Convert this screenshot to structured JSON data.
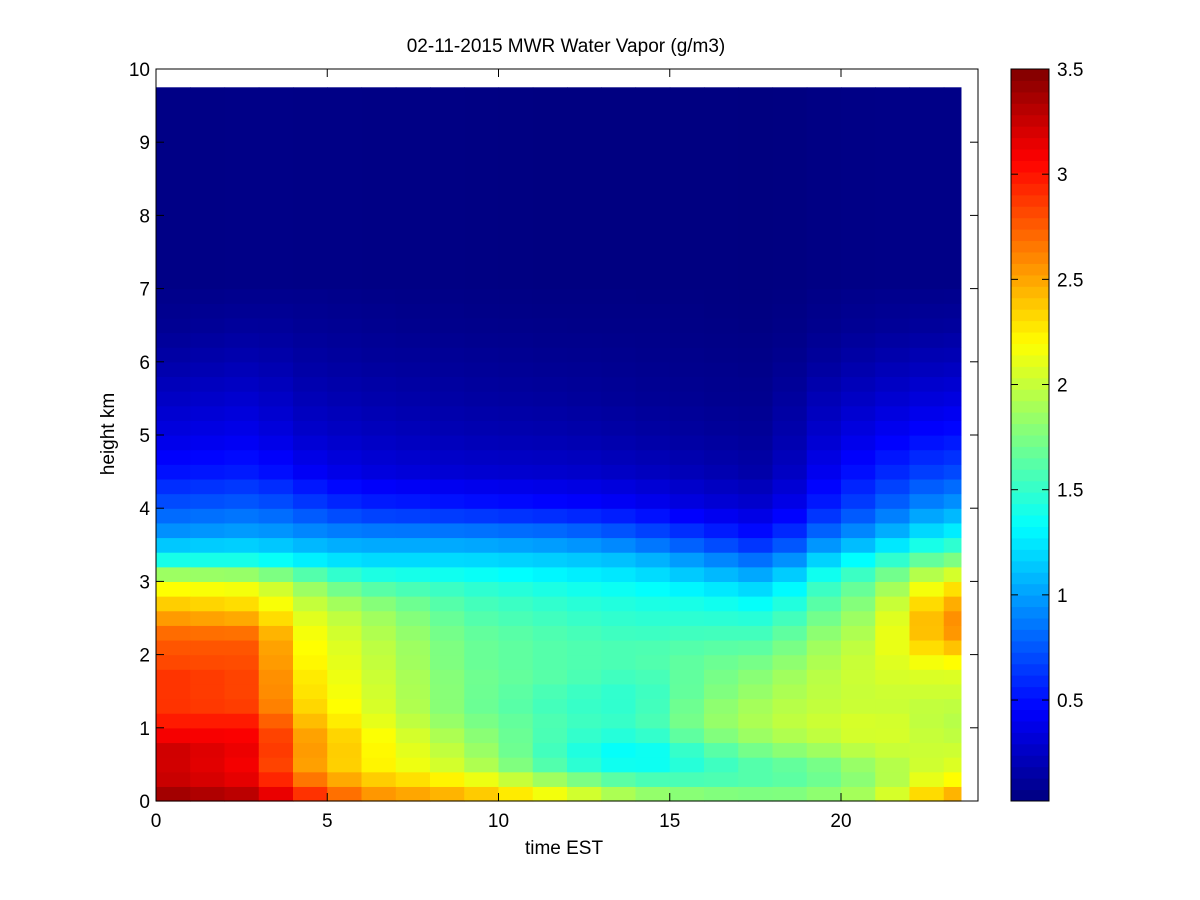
{
  "chart_data": {
    "type": "heatmap",
    "title": "02-11-2015 MWR Water Vapor (g/m3)",
    "xlabel": "time EST",
    "ylabel": "height km",
    "xlim": [
      0,
      24
    ],
    "ylim": [
      0,
      10
    ],
    "x_ticks": [
      0,
      5,
      10,
      15,
      20
    ],
    "y_ticks": [
      0,
      1,
      2,
      3,
      4,
      5,
      6,
      7,
      8,
      9,
      10
    ],
    "colormap": "jet",
    "clim": [
      0.02,
      3.5
    ],
    "colorbar_ticks": [
      0.5,
      1,
      1.5,
      2,
      2.5,
      3,
      3.5
    ],
    "grid": false,
    "time_start": 0,
    "time_end": 23.5,
    "time_step": 1,
    "height_top": 9.75,
    "profiles": [
      {
        "t": 0,
        "h": [
          0,
          0.2,
          0.4,
          0.6,
          0.8,
          1.0,
          1.2,
          1.4,
          1.6,
          1.8,
          2.0,
          2.2,
          2.4,
          2.6,
          2.8,
          3.0,
          3.3,
          3.6,
          4.0,
          4.5,
          5.0,
          5.5,
          6.0,
          6.5,
          7.0,
          9.75
        ],
        "v": [
          3.45,
          3.35,
          3.2,
          3.3,
          3.2,
          3.0,
          2.95,
          2.85,
          2.95,
          2.85,
          2.8,
          2.75,
          2.65,
          2.45,
          2.3,
          2.1,
          1.4,
          1.0,
          0.75,
          0.5,
          0.35,
          0.25,
          0.15,
          0.08,
          0.05,
          0.03
        ]
      },
      {
        "t": 3,
        "h": [
          0,
          0.2,
          0.4,
          0.6,
          0.8,
          1.0,
          1.2,
          1.4,
          1.6,
          1.8,
          2.0,
          2.2,
          2.4,
          2.6,
          2.8,
          3.0,
          3.3,
          3.6,
          4.0,
          4.5,
          5.0,
          5.5,
          6.0,
          6.5,
          7.0,
          9.75
        ],
        "v": [
          3.35,
          3.2,
          3.05,
          3.1,
          3.1,
          3.05,
          2.9,
          2.8,
          2.85,
          2.8,
          2.8,
          2.75,
          2.6,
          2.35,
          2.25,
          2.05,
          1.4,
          1.05,
          0.8,
          0.55,
          0.4,
          0.3,
          0.2,
          0.12,
          0.06,
          0.03
        ]
      },
      {
        "t": 4,
        "h": [
          0,
          0.2,
          0.4,
          0.6,
          0.8,
          1.0,
          1.2,
          1.4,
          1.6,
          1.8,
          2.0,
          2.2,
          2.4,
          2.6,
          2.8,
          3.0,
          3.3,
          3.6,
          4.0,
          4.5,
          5.0,
          5.5,
          6.0,
          6.5,
          7.0,
          9.75
        ],
        "v": [
          3.1,
          2.9,
          2.6,
          2.6,
          2.65,
          2.55,
          2.45,
          2.35,
          2.35,
          2.3,
          2.25,
          2.25,
          2.2,
          2.1,
          2.0,
          1.85,
          1.3,
          1.0,
          0.72,
          0.45,
          0.3,
          0.22,
          0.15,
          0.1,
          0.06,
          0.03
        ]
      },
      {
        "t": 6,
        "h": [
          0,
          0.2,
          0.4,
          0.6,
          0.8,
          1.0,
          1.2,
          1.4,
          1.6,
          1.8,
          2.0,
          2.2,
          2.4,
          2.6,
          2.8,
          3.0,
          3.3,
          3.6,
          4.0,
          4.5,
          5.0,
          5.5,
          6.0,
          6.5,
          7.0,
          9.75
        ],
        "v": [
          2.65,
          2.5,
          2.3,
          2.25,
          2.3,
          2.2,
          2.15,
          2.1,
          2.1,
          2.05,
          2.05,
          2.0,
          1.95,
          1.9,
          1.75,
          1.55,
          1.2,
          0.95,
          0.6,
          0.35,
          0.25,
          0.18,
          0.12,
          0.08,
          0.05,
          0.03
        ]
      },
      {
        "t": 9,
        "h": [
          0,
          0.2,
          0.4,
          0.6,
          0.8,
          1.0,
          1.2,
          1.4,
          1.6,
          1.8,
          2.0,
          2.2,
          2.4,
          2.6,
          2.8,
          3.0,
          3.3,
          3.6,
          4.0,
          4.5,
          5.0,
          5.5,
          6.0,
          6.5,
          7.0,
          9.75
        ],
        "v": [
          2.5,
          2.35,
          2.05,
          1.95,
          1.9,
          1.8,
          1.75,
          1.7,
          1.75,
          1.7,
          1.7,
          1.7,
          1.65,
          1.6,
          1.55,
          1.45,
          1.2,
          0.95,
          0.55,
          0.3,
          0.2,
          0.14,
          0.1,
          0.06,
          0.04,
          0.03
        ]
      },
      {
        "t": 12,
        "h": [
          0,
          0.2,
          0.4,
          0.6,
          0.8,
          1.0,
          1.2,
          1.4,
          1.6,
          1.8,
          2.0,
          2.2,
          2.4,
          2.6,
          2.8,
          3.0,
          3.3,
          3.6,
          4.0,
          4.5,
          5.0,
          5.5,
          6.0,
          6.5,
          7.0,
          9.75
        ],
        "v": [
          2.2,
          2.0,
          1.6,
          1.45,
          1.5,
          1.55,
          1.55,
          1.5,
          1.6,
          1.6,
          1.6,
          1.6,
          1.55,
          1.5,
          1.45,
          1.35,
          1.15,
          0.9,
          0.5,
          0.28,
          0.18,
          0.12,
          0.08,
          0.05,
          0.03,
          0.02
        ]
      },
      {
        "t": 14,
        "h": [
          0,
          0.2,
          0.4,
          0.6,
          0.8,
          1.0,
          1.2,
          1.4,
          1.6,
          1.8,
          2.0,
          2.2,
          2.4,
          2.6,
          2.8,
          3.0,
          3.3,
          3.6,
          4.0,
          4.5,
          5.0,
          5.5,
          6.0,
          6.5,
          7.0,
          9.75
        ],
        "v": [
          1.95,
          1.75,
          1.4,
          1.25,
          1.35,
          1.5,
          1.5,
          1.45,
          1.5,
          1.55,
          1.6,
          1.55,
          1.5,
          1.45,
          1.4,
          1.3,
          1.1,
          0.8,
          0.45,
          0.25,
          0.15,
          0.1,
          0.07,
          0.05,
          0.03,
          0.02
        ]
      },
      {
        "t": 16,
        "h": [
          0,
          0.2,
          0.4,
          0.6,
          0.8,
          1.0,
          1.2,
          1.4,
          1.6,
          1.8,
          2.0,
          2.2,
          2.4,
          2.6,
          2.8,
          3.0,
          3.3,
          3.6,
          4.0,
          4.5,
          5.0,
          5.5,
          6.0,
          6.5,
          7.0,
          9.75
        ],
        "v": [
          1.9,
          1.65,
          1.5,
          1.5,
          1.65,
          1.8,
          1.8,
          1.75,
          1.7,
          1.7,
          1.65,
          1.6,
          1.5,
          1.45,
          1.35,
          1.2,
          0.95,
          0.65,
          0.35,
          0.2,
          0.12,
          0.08,
          0.06,
          0.04,
          0.03,
          0.02
        ]
      },
      {
        "t": 18,
        "h": [
          0,
          0.2,
          0.4,
          0.6,
          0.8,
          1.0,
          1.2,
          1.4,
          1.6,
          1.8,
          2.0,
          2.2,
          2.4,
          2.6,
          2.8,
          3.0,
          3.3,
          3.6,
          4.0,
          4.5,
          5.0,
          5.5,
          6.0,
          6.5,
          7.0,
          9.75
        ],
        "v": [
          1.85,
          1.65,
          1.6,
          1.7,
          1.85,
          1.95,
          1.95,
          1.9,
          1.85,
          1.8,
          1.7,
          1.6,
          1.5,
          1.4,
          1.25,
          1.1,
          0.8,
          0.5,
          0.3,
          0.15,
          0.1,
          0.07,
          0.05,
          0.03,
          0.02,
          0.02
        ]
      },
      {
        "t": 19,
        "h": [
          0,
          0.2,
          0.4,
          0.6,
          0.8,
          1.0,
          1.2,
          1.4,
          1.6,
          1.8,
          2.0,
          2.2,
          2.4,
          2.6,
          2.8,
          3.0,
          3.3,
          3.6,
          4.0,
          4.5,
          5.0,
          5.5,
          6.0,
          6.5,
          7.0,
          9.75
        ],
        "v": [
          1.85,
          1.7,
          1.6,
          1.75,
          1.9,
          2.0,
          2.0,
          1.95,
          1.95,
          1.9,
          1.85,
          1.8,
          1.7,
          1.6,
          1.5,
          1.4,
          1.1,
          0.8,
          0.5,
          0.35,
          0.25,
          0.18,
          0.1,
          0.06,
          0.04,
          0.02
        ]
      },
      {
        "t": 21,
        "h": [
          0,
          0.2,
          0.4,
          0.6,
          0.8,
          1.0,
          1.2,
          1.4,
          1.6,
          1.8,
          2.0,
          2.2,
          2.4,
          2.6,
          2.8,
          3.0,
          3.3,
          3.6,
          4.0,
          4.5,
          5.0,
          5.5,
          6.0,
          6.5,
          7.0,
          9.75
        ],
        "v": [
          2.0,
          1.85,
          1.85,
          1.95,
          2.05,
          2.1,
          2.05,
          2.0,
          2.05,
          2.05,
          2.05,
          2.0,
          1.95,
          1.9,
          1.8,
          1.7,
          1.4,
          1.05,
          0.75,
          0.55,
          0.4,
          0.28,
          0.18,
          0.1,
          0.06,
          0.03
        ]
      },
      {
        "t": 23,
        "h": [
          0,
          0.2,
          0.4,
          0.6,
          0.8,
          1.0,
          1.2,
          1.4,
          1.6,
          1.8,
          2.0,
          2.2,
          2.4,
          2.6,
          2.8,
          3.0,
          3.3,
          3.6,
          4.0,
          4.5,
          5.0,
          5.5,
          6.0,
          6.5,
          7.0,
          9.75
        ],
        "v": [
          2.6,
          2.3,
          2.1,
          2.05,
          2.0,
          1.95,
          1.95,
          2.0,
          2.05,
          2.1,
          2.3,
          2.5,
          2.6,
          2.55,
          2.4,
          2.2,
          1.75,
          1.35,
          1.0,
          0.7,
          0.5,
          0.35,
          0.22,
          0.12,
          0.06,
          0.03
        ]
      }
    ]
  }
}
